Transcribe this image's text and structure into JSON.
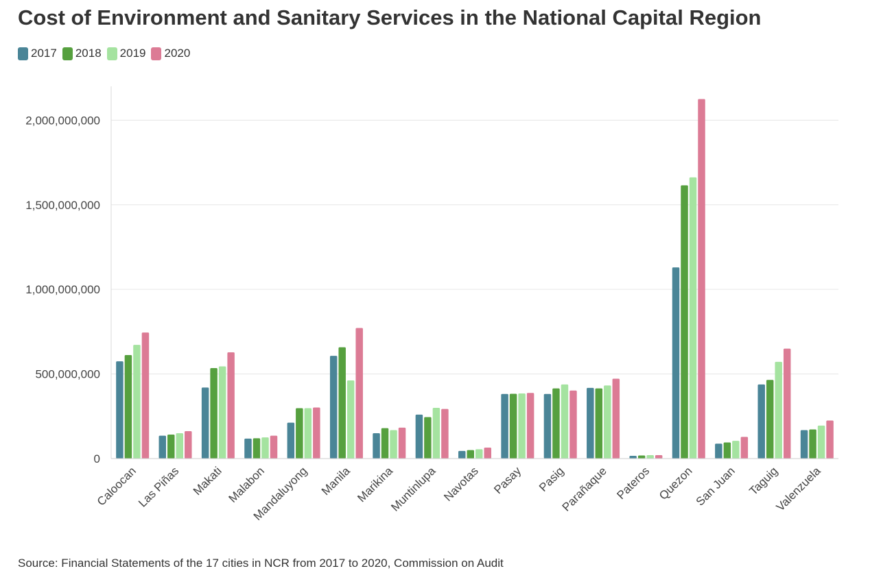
{
  "header": {
    "title": "Cost of Environment and Sanitary Services in the National Capital Region"
  },
  "footer": {
    "source": "Source: Financial Statements of the 17 cities in NCR from 2017 to 2020, Commission on Audit"
  },
  "chart_data": {
    "type": "bar",
    "title": "Cost of Environment and Sanitary Services in the National Capital Region",
    "xlabel": "",
    "ylabel": "",
    "ylim": [
      0,
      2200000000
    ],
    "yticks": [
      0,
      500000000,
      1000000000,
      1500000000,
      2000000000
    ],
    "ytick_labels": [
      "0",
      "500,000,000",
      "1,000,000,000",
      "1,500,000,000",
      "2,000,000,000"
    ],
    "grid": true,
    "legend_position": "top-left",
    "categories": [
      "Caloocan",
      "Las Piñas",
      "Makati",
      "Malabon",
      "Mandaluyong",
      "Manila",
      "Marikina",
      "Muntinlupa",
      "Navotas",
      "Pasay",
      "Pasig",
      "Parañaque",
      "Pateros",
      "Quezon",
      "San Juan",
      "Taguig",
      "Valenzuela"
    ],
    "series": [
      {
        "name": "2017",
        "color": "#4a8597",
        "values": [
          575000000,
          135000000,
          420000000,
          118000000,
          212000000,
          607000000,
          150000000,
          260000000,
          45000000,
          382000000,
          382000000,
          418000000,
          16000000,
          1130000000,
          88000000,
          438000000,
          168000000
        ]
      },
      {
        "name": "2018",
        "color": "#56a03f",
        "values": [
          612000000,
          142000000,
          535000000,
          120000000,
          298000000,
          658000000,
          180000000,
          245000000,
          50000000,
          383000000,
          415000000,
          415000000,
          18000000,
          1615000000,
          95000000,
          465000000,
          172000000
        ]
      },
      {
        "name": "2019",
        "color": "#a5e3a0",
        "values": [
          672000000,
          150000000,
          545000000,
          125000000,
          298000000,
          462000000,
          168000000,
          300000000,
          55000000,
          385000000,
          438000000,
          432000000,
          20000000,
          1662000000,
          105000000,
          572000000,
          195000000
        ]
      },
      {
        "name": "2020",
        "color": "#dc7b95",
        "values": [
          745000000,
          162000000,
          628000000,
          135000000,
          302000000,
          772000000,
          183000000,
          293000000,
          65000000,
          388000000,
          402000000,
          472000000,
          20000000,
          2125000000,
          128000000,
          650000000,
          225000000
        ]
      }
    ]
  }
}
